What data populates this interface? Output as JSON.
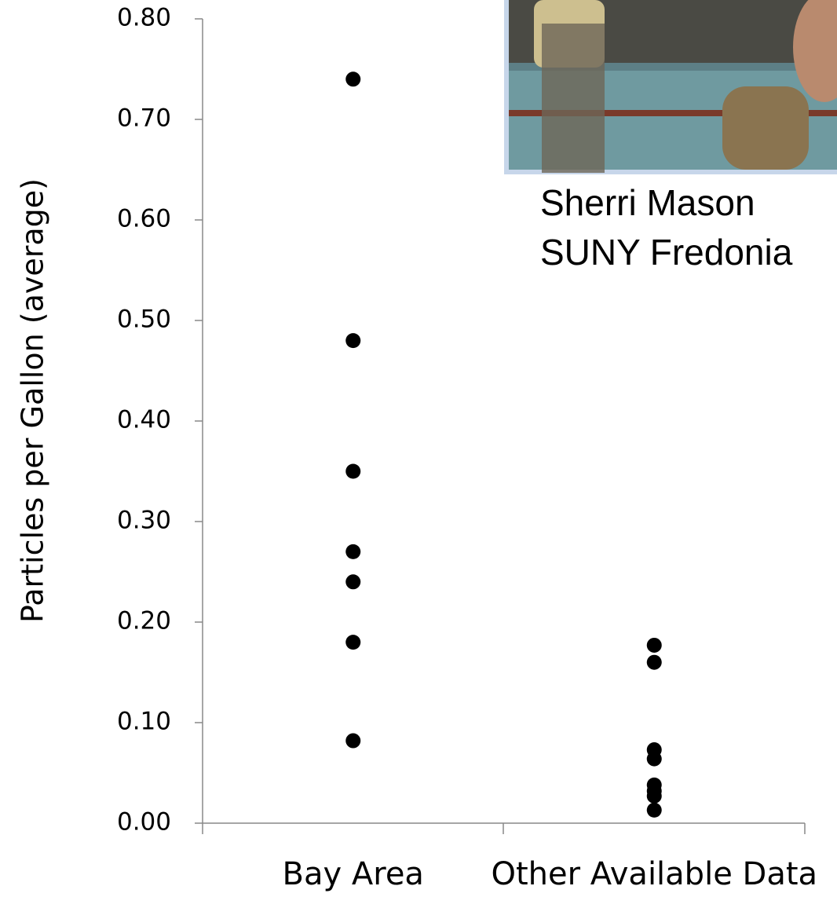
{
  "chart_data": {
    "type": "strip",
    "y_label": "Particles per Gallon (average)",
    "categories": [
      "Bay Area",
      "Other Available Data"
    ],
    "values": [
      [
        0.74,
        0.48,
        0.35,
        0.27,
        0.24,
        0.18,
        0.082
      ],
      [
        0.177,
        0.16,
        0.073,
        0.064,
        0.038,
        0.032,
        0.027,
        0.013
      ]
    ],
    "color": "#000000",
    "ylim": [
      0,
      0.8
    ],
    "yticks": [
      {
        "value": 0,
        "label": "0.00"
      },
      {
        "value": 0.1,
        "label": "0.10"
      },
      {
        "value": 0.2,
        "label": "0.20"
      },
      {
        "value": 0.3,
        "label": "0.30"
      },
      {
        "value": 0.4,
        "label": "0.40"
      },
      {
        "value": 0.5,
        "label": "0.50"
      },
      {
        "value": 0.6,
        "label": "0.60"
      },
      {
        "value": 0.7,
        "label": "0.70"
      },
      {
        "value": 0.8,
        "label": "0.80"
      }
    ],
    "annotations": [
      "Sherri Mason",
      "SUNY Fredonia"
    ]
  }
}
